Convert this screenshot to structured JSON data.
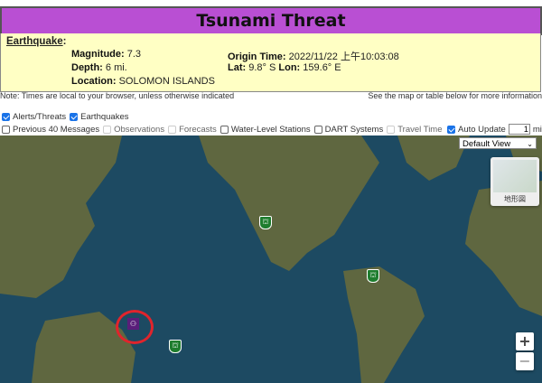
{
  "title": "Tsunami Threat",
  "earthquake": {
    "heading": "Earthquake",
    "magnitude_label": "Magnitude:",
    "magnitude": "7.3",
    "depth_label": "Depth:",
    "depth": "6 mi.",
    "location_label": "Location:",
    "location": "SOLOMON ISLANDS",
    "origin_label": "Origin Time:",
    "origin_time": "2022/11/22 上午10:03:08",
    "lat_label": "Lat:",
    "lat": "9.8° S",
    "lon_label": "Lon:",
    "lon": "159.6° E"
  },
  "notes": {
    "left": "Note: Times are local to your browser, unless otherwise indicated",
    "right": "See the map or table below for more information"
  },
  "layers": [
    {
      "label": "Alerts/Threats",
      "checked": true
    },
    {
      "label": "Earthquakes",
      "checked": true
    },
    {
      "label": "Previous 40 Messages",
      "checked": false
    },
    {
      "label": "Observations",
      "checked": false,
      "disabled": true
    },
    {
      "label": "Forecasts",
      "checked": false,
      "disabled": true
    },
    {
      "label": "Water-Level Stations",
      "checked": false
    },
    {
      "label": "DART Systems",
      "checked": false
    },
    {
      "label": "Travel Time",
      "checked": false,
      "disabled": true
    }
  ],
  "auto_update": {
    "label": "Auto Update",
    "checked": true,
    "value": "1",
    "unit": "min"
  },
  "map": {
    "view_select": "Default View",
    "terrain_label": "地形図",
    "zoom_in": "+",
    "zoom_out": "−",
    "colors": {
      "title_bar": "#b94fd3",
      "info_bg": "#ffffc4",
      "ring": "#e0242c",
      "alert_marker": "#1e7d2e",
      "quake_marker": "#5a1e7a"
    }
  }
}
